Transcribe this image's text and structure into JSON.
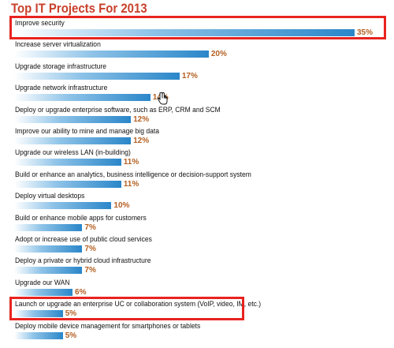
{
  "chart_data": {
    "type": "bar",
    "orientation": "horizontal",
    "title": "Top IT Projects For 2013",
    "categories": [
      "Improve security",
      "Increase server virtualization",
      "Upgrade storage infrastructure",
      "Upgrade network infrastructure",
      "Deploy or upgrade enterprise software, such as ERP, CRM and SCM",
      "Improve our ability to mine and manage big data",
      "Upgrade our wireless LAN (in-building)",
      "Build or enhance an analytics, business intelligence or decision-support system",
      "Deploy virtual desktops",
      "Build or enhance mobile apps for customers",
      "Adopt or increase use of public cloud services",
      "Deploy a private or hybrid cloud infrastructure",
      "Upgrade our WAN",
      "Launch or upgrade an enterprise UC or collaboration system (VoIP, video, IM, etc.)",
      "Deploy mobile device management for smartphones or tablets"
    ],
    "values": [
      35,
      20,
      17,
      14,
      12,
      12,
      11,
      11,
      10,
      7,
      7,
      7,
      6,
      5,
      5
    ],
    "value_labels": [
      "35%",
      "20%",
      "17%",
      "14%",
      "12%",
      "12%",
      "11%",
      "11%",
      "10%",
      "7%",
      "7%",
      "7%",
      "6%",
      "5%",
      "5%"
    ],
    "highlighted_rows": [
      0,
      13
    ],
    "xlim": [
      0,
      35
    ],
    "grid": false,
    "bar_color": "#2a86c9",
    "value_label_color": "#b45f21",
    "title_color": "#c8412c",
    "highlight_color": "#e8231f"
  }
}
